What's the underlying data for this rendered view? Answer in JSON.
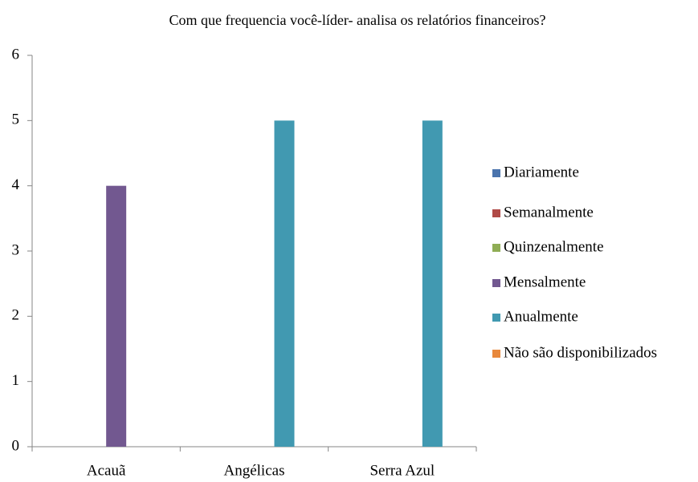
{
  "chart_data": {
    "type": "bar",
    "title": "Com que frequencia você-líder- analisa os relatórios financeiros?",
    "categories": [
      "Acauã",
      "Angélicas",
      "Serra Azul"
    ],
    "series": [
      {
        "name": "Diariamente",
        "color": "#4a74ad",
        "values": [
          0,
          0,
          0
        ]
      },
      {
        "name": "Semanalmente",
        "color": "#b04a47",
        "values": [
          0,
          0,
          0
        ]
      },
      {
        "name": "Quinzenalmente",
        "color": "#8fad55",
        "values": [
          0,
          0,
          0
        ]
      },
      {
        "name": "Mensalmente",
        "color": "#725890",
        "values": [
          4,
          0,
          0
        ]
      },
      {
        "name": "Anualmente",
        "color": "#4199b1",
        "values": [
          0,
          5,
          5
        ]
      },
      {
        "name": "Não são disponibilizados",
        "color": "#e8883c",
        "values": [
          0,
          0,
          0
        ]
      }
    ],
    "ylim": [
      0,
      6
    ],
    "yticks": [
      0,
      1,
      2,
      3,
      4,
      5,
      6
    ],
    "grid": false,
    "legend": "right"
  }
}
